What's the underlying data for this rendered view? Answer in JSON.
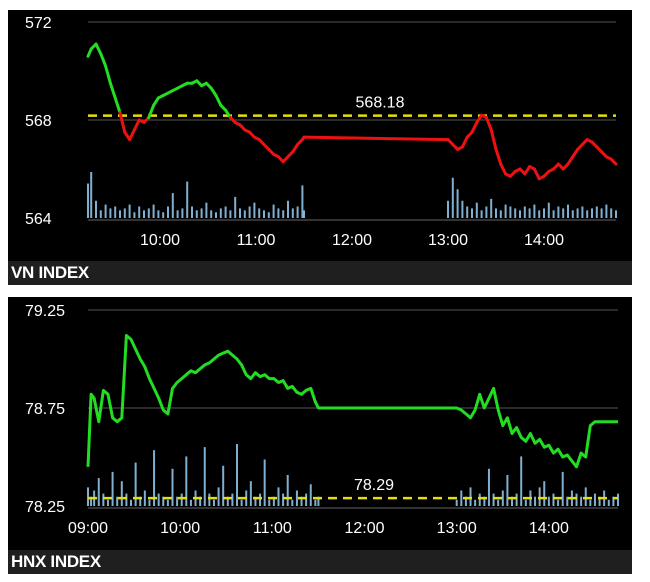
{
  "chart_data": [
    {
      "type": "line",
      "title": "VN INDEX",
      "ylim": [
        564,
        572
      ],
      "yticks": [
        "572",
        "568",
        "564"
      ],
      "xlim": [
        "09:15",
        "14:45"
      ],
      "xticks": [
        "10:00",
        "11:00",
        "12:00",
        "13:00",
        "14:00"
      ],
      "reference": {
        "value": 568.18,
        "label": "568.18"
      },
      "grid": true,
      "colors": {
        "above": "#22dd22",
        "below": "#ee1111",
        "reference": "#e6dd11",
        "volume": "#8ec4e8"
      },
      "series": [
        {
          "x": [
            "09:15",
            "09:17",
            "09:20",
            "09:23",
            "09:26",
            "09:29",
            "09:32",
            "09:35",
            "09:38",
            "09:41",
            "09:44",
            "09:47",
            "09:50",
            "09:53",
            "09:56",
            "09:59",
            "10:02",
            "10:05",
            "10:08",
            "10:11",
            "10:14",
            "10:17",
            "10:20",
            "10:23",
            "10:26",
            "10:29",
            "10:32",
            "10:35",
            "10:38",
            "10:41",
            "10:44",
            "10:47",
            "10:50",
            "10:53",
            "10:56",
            "10:59",
            "11:02",
            "11:05",
            "11:08",
            "11:11",
            "11:14",
            "11:17",
            "11:20",
            "11:23",
            "11:26",
            "11:29",
            "11:30",
            "13:00",
            "13:03",
            "13:06",
            "13:09",
            "13:12",
            "13:15",
            "13:18",
            "13:21",
            "13:24",
            "13:27",
            "13:30",
            "13:33",
            "13:36",
            "13:39",
            "13:42",
            "13:45",
            "13:48",
            "13:51",
            "13:54",
            "13:57",
            "14:00",
            "14:03",
            "14:06",
            "14:09",
            "14:12",
            "14:15",
            "14:18",
            "14:21",
            "14:24",
            "14:27",
            "14:30",
            "14:33",
            "14:36",
            "14:39",
            "14:42",
            "14:45"
          ],
          "y": [
            570.6,
            570.9,
            571.1,
            570.7,
            570.2,
            569.5,
            568.9,
            568.3,
            567.5,
            567.2,
            567.6,
            568.0,
            567.9,
            568.1,
            568.6,
            568.9,
            569.0,
            569.1,
            569.2,
            569.3,
            569.4,
            569.5,
            569.5,
            569.6,
            569.4,
            569.5,
            569.3,
            569.0,
            568.6,
            568.4,
            568.1,
            567.9,
            567.8,
            567.6,
            567.5,
            567.3,
            567.2,
            567.0,
            566.8,
            566.6,
            566.5,
            566.3,
            566.5,
            566.7,
            567.0,
            567.2,
            567.3,
            567.2,
            567.0,
            566.8,
            566.9,
            567.3,
            567.5,
            567.9,
            568.2,
            568.1,
            567.6,
            566.8,
            566.2,
            565.8,
            565.7,
            565.9,
            566.0,
            565.8,
            566.1,
            566.0,
            565.6,
            565.7,
            565.9,
            566.0,
            566.2,
            566.0,
            566.2,
            566.5,
            566.8,
            567.0,
            567.2,
            567.1,
            566.9,
            566.7,
            566.5,
            566.4,
            566.2
          ]
        }
      ],
      "volume": [
        1.8,
        2.4,
        0.9,
        0.4,
        0.7,
        0.5,
        0.6,
        0.4,
        0.5,
        0.7,
        0.3,
        0.6,
        0.4,
        0.5,
        0.7,
        0.4,
        0.3,
        0.6,
        1.3,
        0.4,
        0.5,
        1.9,
        0.6,
        0.4,
        0.5,
        0.8,
        0.4,
        0.3,
        0.5,
        0.6,
        0.4,
        1.1,
        0.5,
        0.4,
        0.6,
        0.8,
        0.5,
        0.4,
        0.3,
        0.7,
        0.5,
        0.4,
        0.9,
        0.5,
        0.6,
        1.7,
        0.4,
        0.9,
        2.1,
        1.5,
        0.9,
        0.6,
        0.5,
        0.8,
        0.4,
        0.6,
        1.0,
        0.5,
        0.4,
        0.7,
        0.6,
        0.5,
        0.4,
        0.6,
        0.5,
        0.7,
        0.4,
        0.5,
        0.8,
        0.4,
        0.6,
        0.5,
        0.7,
        0.4,
        0.5,
        0.6,
        0.4,
        0.5,
        0.6,
        0.5,
        0.7,
        0.5,
        0.4
      ]
    },
    {
      "type": "line",
      "title": "HNX INDEX",
      "ylim": [
        78.25,
        79.25
      ],
      "yticks": [
        "79.25",
        "78.75",
        "78.25"
      ],
      "xlim": [
        "09:00",
        "14:45"
      ],
      "xticks": [
        "09:00",
        "10:00",
        "11:00",
        "12:00",
        "13:00",
        "14:00"
      ],
      "reference": {
        "value": 78.29,
        "label": "78.29"
      },
      "grid": true,
      "colors": {
        "line": "#22dd22",
        "reference": "#e6dd11",
        "volume": "#8ec4e8"
      },
      "series": [
        {
          "x": [
            "09:00",
            "09:02",
            "09:04",
            "09:07",
            "09:10",
            "09:13",
            "09:16",
            "09:19",
            "09:22",
            "09:25",
            "09:28",
            "09:31",
            "09:34",
            "09:37",
            "09:40",
            "09:43",
            "09:46",
            "09:49",
            "09:52",
            "09:55",
            "09:58",
            "10:01",
            "10:04",
            "10:07",
            "10:10",
            "10:13",
            "10:16",
            "10:19",
            "10:22",
            "10:25",
            "10:28",
            "10:31",
            "10:34",
            "10:37",
            "10:40",
            "10:43",
            "10:46",
            "10:49",
            "10:52",
            "10:55",
            "10:58",
            "11:01",
            "11:04",
            "11:07",
            "11:10",
            "11:13",
            "11:16",
            "11:19",
            "11:22",
            "11:25",
            "11:28",
            "11:30",
            "13:00",
            "13:03",
            "13:06",
            "13:09",
            "13:12",
            "13:15",
            "13:18",
            "13:21",
            "13:24",
            "13:27",
            "13:30",
            "13:33",
            "13:36",
            "13:39",
            "13:42",
            "13:45",
            "13:48",
            "13:51",
            "13:54",
            "13:57",
            "14:00",
            "14:03",
            "14:06",
            "14:09",
            "14:12",
            "14:15",
            "14:18",
            "14:21",
            "14:24",
            "14:27",
            "14:30",
            "14:33",
            "14:36",
            "14:39",
            "14:42",
            "14:45"
          ],
          "y": [
            78.45,
            78.82,
            78.8,
            78.68,
            78.84,
            78.82,
            78.7,
            78.68,
            78.7,
            79.12,
            79.1,
            79.05,
            79.0,
            78.96,
            78.9,
            78.85,
            78.8,
            78.74,
            78.72,
            78.85,
            78.88,
            78.9,
            78.92,
            78.94,
            78.93,
            78.95,
            78.97,
            78.98,
            79.0,
            79.02,
            79.03,
            79.04,
            79.02,
            79.0,
            78.97,
            78.92,
            78.9,
            78.93,
            78.91,
            78.92,
            78.9,
            78.9,
            78.88,
            78.89,
            78.85,
            78.86,
            78.83,
            78.82,
            78.84,
            78.85,
            78.78,
            78.75,
            78.75,
            78.74,
            78.72,
            78.7,
            78.74,
            78.82,
            78.75,
            78.8,
            78.85,
            78.74,
            78.66,
            78.7,
            78.62,
            78.65,
            78.6,
            78.58,
            78.62,
            78.57,
            78.59,
            78.55,
            78.56,
            78.52,
            78.54,
            78.5,
            78.51,
            78.48,
            78.45,
            78.52,
            78.5,
            78.66,
            78.68,
            78.68,
            78.68,
            78.68,
            78.68,
            78.68
          ]
        }
      ],
      "volume": [
        0.6,
        0.3,
        0.5,
        0.9,
        0.4,
        0.2,
        1.1,
        0.3,
        0.8,
        0.4,
        0.2,
        1.4,
        0.3,
        0.5,
        0.2,
        1.8,
        0.4,
        0.3,
        0.2,
        1.2,
        0.3,
        0.4,
        1.6,
        0.2,
        0.5,
        0.3,
        1.9,
        0.4,
        0.2,
        0.6,
        1.3,
        0.3,
        0.4,
        2.0,
        0.2,
        0.5,
        0.8,
        0.3,
        0.4,
        1.5,
        0.2,
        0.3,
        0.6,
        0.4,
        1.0,
        0.2,
        0.5,
        0.3,
        0.4,
        0.7,
        0.2,
        0.3,
        0.2,
        0.5,
        0.3,
        0.6,
        0.2,
        0.4,
        0.3,
        1.2,
        0.4,
        0.2,
        0.5,
        1.0,
        0.3,
        0.4,
        1.6,
        0.2,
        0.5,
        0.3,
        0.6,
        0.8,
        0.3,
        0.4,
        0.2,
        1.1,
        0.3,
        0.5,
        0.4,
        0.3,
        0.6,
        0.2,
        0.4,
        0.3,
        0.5,
        0.2,
        0.3,
        0.4
      ]
    }
  ]
}
